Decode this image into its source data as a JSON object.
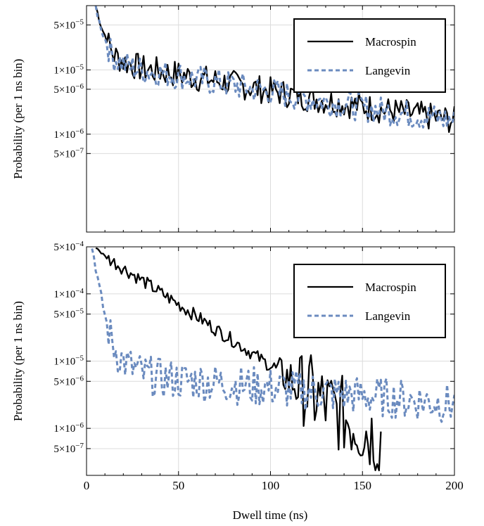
{
  "colors": {
    "macrospin": "#000000",
    "langevin": "#6b8bbf",
    "grid": "#dcdcdc",
    "frame": "#000000"
  },
  "xlabel": "Dwell time (ns)",
  "chart_data": [
    {
      "type": "line",
      "ylabel": "Probability (per 1 ns bin)",
      "y_scale": "log",
      "xlim": [
        0,
        200
      ],
      "ylim": [
        3e-08,
        0.0001
      ],
      "x_ticks": [
        0,
        50,
        100,
        150,
        200
      ],
      "x_tick_labels": [
        "",
        "",
        "",
        "",
        ""
      ],
      "y_ticks": [
        {
          "value": 5e-05,
          "mant": "5",
          "exp": "−5"
        },
        {
          "value": 1e-05,
          "mant": "1",
          "exp": "−5"
        },
        {
          "value": 5e-06,
          "mant": "5",
          "exp": "−6"
        },
        {
          "value": 1e-06,
          "mant": "1",
          "exp": "−6"
        },
        {
          "value": 5e-07,
          "mant": "5",
          "exp": "−7"
        }
      ],
      "grid": true,
      "legend_position": "top-right",
      "series": [
        {
          "name": "Macrospin",
          "style": "solid",
          "color": "#000000",
          "x": [
            5,
            7,
            9,
            11,
            13,
            15,
            20,
            25,
            30,
            40,
            50,
            60,
            70,
            80,
            90,
            100,
            110,
            120,
            130,
            140,
            150,
            160,
            170,
            180,
            190,
            200
          ],
          "y": [
            0.0001,
            6e-05,
            4e-05,
            3e-05,
            2.1e-05,
            1.7e-05,
            1.35e-05,
            1.2e-05,
            1.05e-05,
            9.5e-06,
            8.5e-06,
            7.5e-06,
            6.8e-06,
            6e-06,
            5.3e-06,
            4.7e-06,
            4.2e-06,
            3.7e-06,
            3.3e-06,
            3e-06,
            2.7e-06,
            2.4e-06,
            2.2e-06,
            2e-06,
            1.8e-06,
            1.65e-06
          ],
          "noise": 0.22
        },
        {
          "name": "Langevin",
          "style": "dashed",
          "color": "#6b8bbf",
          "x": [
            5,
            7,
            9,
            11,
            13,
            15,
            20,
            25,
            30,
            40,
            50,
            60,
            70,
            80,
            90,
            100,
            110,
            120,
            130,
            140,
            150,
            160,
            170,
            180,
            190,
            200
          ],
          "y": [
            9.5e-05,
            5.5e-05,
            3.6e-05,
            2.6e-05,
            1.9e-05,
            1.55e-05,
            1.25e-05,
            1.1e-05,
            9.8e-06,
            9e-06,
            8.2e-06,
            7.2e-06,
            6.5e-06,
            5.8e-06,
            5.1e-06,
            4.6e-06,
            4.1e-06,
            3.6e-06,
            3.2e-06,
            2.9e-06,
            2.6e-06,
            2.35e-06,
            2.15e-06,
            1.95e-06,
            1.8e-06,
            1.6e-06
          ],
          "noise": 0.22
        }
      ]
    },
    {
      "type": "line",
      "ylabel": "Probability (per 1 ns bin)",
      "y_scale": "log",
      "xlim": [
        0,
        200
      ],
      "ylim": [
        2e-07,
        0.0005
      ],
      "x_ticks": [
        0,
        50,
        100,
        150,
        200
      ],
      "x_tick_labels": [
        "0",
        "50",
        "100",
        "150",
        "200"
      ],
      "y_ticks": [
        {
          "value": 0.0005,
          "mant": "5",
          "exp": "−4"
        },
        {
          "value": 0.0001,
          "mant": "1",
          "exp": "−4"
        },
        {
          "value": 5e-05,
          "mant": "5",
          "exp": "−5"
        },
        {
          "value": 1e-05,
          "mant": "1",
          "exp": "−5"
        },
        {
          "value": 5e-06,
          "mant": "5",
          "exp": "−6"
        },
        {
          "value": 1e-06,
          "mant": "1",
          "exp": "−6"
        },
        {
          "value": 5e-07,
          "mant": "5",
          "exp": "−7"
        }
      ],
      "grid": true,
      "legend_position": "top-right",
      "series": [
        {
          "name": "Macrospin",
          "style": "solid",
          "color": "#000000",
          "x": [
            5,
            10,
            20,
            30,
            40,
            50,
            60,
            70,
            80,
            90,
            100,
            110,
            120,
            130,
            140,
            150,
            160
          ],
          "y": [
            0.0005,
            0.00036,
            0.00024,
            0.00016,
            0.000105,
            7e-05,
            4.6e-05,
            3e-05,
            2e-05,
            1.3e-05,
            8.5e-06,
            5.5e-06,
            3.5e-06,
            2.3e-06,
            1.5e-06,
            1e-06,
            7e-07
          ],
          "noise": 0.1,
          "noise_ramp": [
            100,
            120,
            0.5
          ]
        },
        {
          "name": "Langevin",
          "style": "dashed",
          "color": "#6b8bbf",
          "x": [
            3,
            5,
            7,
            9,
            11,
            13,
            15,
            18,
            22,
            26,
            30,
            40,
            60,
            80,
            100,
            120,
            140,
            160,
            180,
            200
          ],
          "y": [
            0.0005,
            0.00025,
            0.00012,
            6.5e-05,
            3.6e-05,
            2.3e-05,
            1.6e-05,
            1.15e-05,
            9e-06,
            7.5e-06,
            6.5e-06,
            5.5e-06,
            5e-06,
            4.5e-06,
            4e-06,
            3.6e-06,
            3.2e-06,
            2.9e-06,
            2.6e-06,
            2.3e-06
          ],
          "noise": 0.3
        }
      ]
    }
  ]
}
